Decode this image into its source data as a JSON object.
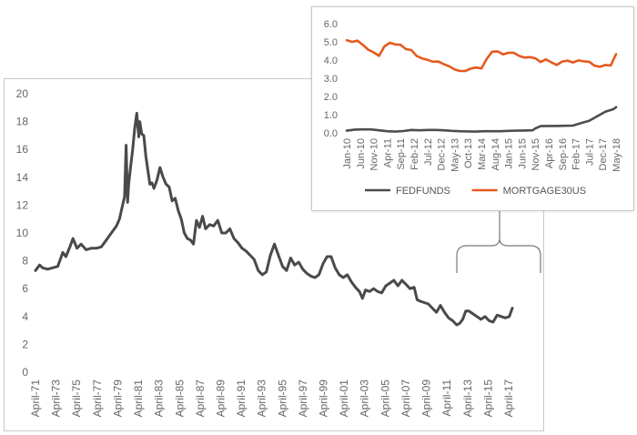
{
  "chart_data": [
    {
      "type": "line",
      "title": "",
      "xlabel": "",
      "ylabel": "",
      "ylim": [
        0,
        20
      ],
      "yticks": [
        "0",
        "2",
        "4",
        "6",
        "8",
        "10",
        "12",
        "14",
        "16",
        "18",
        "20"
      ],
      "xticks": [
        "April-71",
        "April-73",
        "April-75",
        "April-77",
        "April-79",
        "April-81",
        "April-83",
        "April-85",
        "April-87",
        "April-89",
        "April-91",
        "April-93",
        "April-95",
        "April-97",
        "April-99",
        "April-01",
        "April-03",
        "April-05",
        "April-07",
        "April-09",
        "April-11",
        "April-13",
        "April-15",
        "April-17"
      ],
      "grid": false,
      "series": [
        {
          "name": "",
          "color": "#4a4a4a",
          "x": [
            1971.3,
            1971.7,
            1972.0,
            1972.5,
            1973.0,
            1973.5,
            1974.0,
            1974.3,
            1974.7,
            1975.0,
            1975.4,
            1975.8,
            1976.3,
            1976.8,
            1977.3,
            1977.8,
            1978.3,
            1978.8,
            1979.3,
            1979.6,
            1979.9,
            1980.1,
            1980.25,
            1980.4,
            1980.5,
            1980.7,
            1980.9,
            1981.1,
            1981.3,
            1981.5,
            1981.6,
            1981.8,
            1982.0,
            1982.2,
            1982.4,
            1982.6,
            1982.8,
            1983.0,
            1983.3,
            1983.6,
            1983.9,
            1984.2,
            1984.5,
            1984.8,
            1985.1,
            1985.4,
            1985.7,
            1986.0,
            1986.3,
            1986.6,
            1986.9,
            1987.2,
            1987.5,
            1987.8,
            1988.1,
            1988.5,
            1988.9,
            1989.3,
            1989.7,
            1990.1,
            1990.5,
            1990.9,
            1991.3,
            1991.7,
            1992.1,
            1992.5,
            1992.9,
            1993.3,
            1993.7,
            1994.1,
            1994.5,
            1994.9,
            1995.3,
            1995.7,
            1996.1,
            1996.5,
            1996.9,
            1997.3,
            1997.7,
            1998.1,
            1998.5,
            1998.9,
            1999.3,
            1999.7,
            2000.1,
            2000.5,
            2000.9,
            2001.3,
            2001.7,
            2002.1,
            2002.5,
            2002.9,
            2003.3,
            2003.6,
            2003.9,
            2004.3,
            2004.7,
            2005.1,
            2005.5,
            2005.9,
            2006.3,
            2006.7,
            2007.1,
            2007.5,
            2007.9,
            2008.3,
            2008.7,
            2009.0,
            2009.3,
            2009.7,
            2010.1,
            2010.5,
            2010.9,
            2011.3,
            2011.7,
            2012.1,
            2012.5,
            2012.9,
            2013.2,
            2013.5,
            2013.8,
            2014.1,
            2014.5,
            2014.9,
            2015.3,
            2015.7,
            2016.1,
            2016.5,
            2016.9,
            2017.3,
            2017.7,
            2018.1,
            2018.4
          ],
          "y": [
            7.3,
            7.7,
            7.5,
            7.4,
            7.5,
            7.6,
            8.6,
            8.3,
            9.0,
            9.6,
            8.9,
            9.2,
            8.8,
            8.9,
            8.9,
            9.0,
            9.5,
            10.0,
            10.5,
            11.0,
            12.0,
            12.6,
            16.3,
            12.2,
            13.5,
            14.8,
            16.0,
            17.5,
            18.6,
            16.9,
            18.0,
            17.1,
            17.0,
            15.5,
            14.5,
            13.5,
            13.6,
            13.2,
            13.8,
            14.7,
            14.0,
            13.5,
            13.3,
            12.3,
            12.5,
            11.6,
            11.0,
            10.0,
            9.6,
            9.5,
            9.2,
            10.9,
            10.4,
            11.2,
            10.3,
            10.6,
            10.5,
            10.9,
            10.0,
            10.0,
            10.3,
            9.6,
            9.3,
            8.9,
            8.7,
            8.4,
            8.1,
            7.3,
            7.0,
            7.2,
            8.4,
            9.2,
            8.4,
            7.6,
            7.3,
            8.2,
            7.7,
            7.9,
            7.4,
            7.1,
            6.9,
            6.8,
            7.0,
            7.8,
            8.3,
            8.3,
            7.5,
            7.0,
            6.8,
            7.0,
            6.5,
            6.1,
            5.8,
            5.3,
            5.9,
            5.8,
            6.0,
            5.8,
            5.7,
            6.2,
            6.4,
            6.6,
            6.2,
            6.6,
            6.3,
            6.0,
            6.1,
            5.2,
            5.1,
            5.0,
            4.9,
            4.6,
            4.3,
            4.8,
            4.3,
            3.9,
            3.7,
            3.4,
            3.5,
            3.8,
            4.4,
            4.4,
            4.2,
            4.0,
            3.8,
            4.0,
            3.7,
            3.6,
            4.1,
            4.0,
            3.9,
            4.0,
            4.6
          ]
        }
      ]
    },
    {
      "type": "line",
      "title": "",
      "xlabel": "",
      "ylabel": "",
      "ylim": [
        0,
        6
      ],
      "yticks": [
        "0.0",
        "1.0",
        "2.0",
        "3.0",
        "4.0",
        "5.0",
        "6.0"
      ],
      "xticks": [
        "Jan-10",
        "Jun-10",
        "Nov-10",
        "Apr-11",
        "Sep-11",
        "Feb-12",
        "Jul-12",
        "Dec-12",
        "May-13",
        "Oct-13",
        "Mar-14",
        "Aug-14",
        "Jan-15",
        "Jun-15",
        "Nov-15",
        "Apr-16",
        "Sep-16",
        "Feb-17",
        "Jul-17",
        "Dec-17",
        "May-18"
      ],
      "grid": false,
      "legend": "bottom",
      "series": [
        {
          "name": "FEDFUNDS",
          "color": "#4d4d4d",
          "x": [
            0,
            3,
            6,
            9,
            12,
            15,
            18,
            21,
            24,
            27,
            30,
            33,
            36,
            39,
            42,
            45,
            48,
            51,
            54,
            57,
            60,
            63,
            66,
            69,
            70,
            72,
            75,
            78,
            81,
            84,
            87,
            90,
            93,
            96,
            99,
            100
          ],
          "y": [
            0.12,
            0.18,
            0.19,
            0.19,
            0.14,
            0.09,
            0.07,
            0.1,
            0.16,
            0.14,
            0.16,
            0.16,
            0.14,
            0.11,
            0.09,
            0.08,
            0.07,
            0.09,
            0.09,
            0.09,
            0.11,
            0.12,
            0.13,
            0.14,
            0.24,
            0.37,
            0.38,
            0.38,
            0.39,
            0.4,
            0.54,
            0.66,
            0.91,
            1.16,
            1.3,
            1.41
          ]
        },
        {
          "name": "MORTGAGE30US",
          "color": "#e55a1f",
          "x": [
            0,
            2,
            4,
            6,
            8,
            10,
            12,
            14,
            16,
            18,
            20,
            22,
            24,
            26,
            28,
            30,
            32,
            34,
            36,
            38,
            40,
            42,
            44,
            46,
            48,
            50,
            52,
            54,
            56,
            58,
            60,
            62,
            64,
            66,
            68,
            70,
            72,
            74,
            76,
            78,
            80,
            82,
            84,
            86,
            88,
            90,
            92,
            94,
            96,
            98,
            100
          ],
          "y": [
            5.09,
            5.0,
            5.07,
            4.83,
            4.57,
            4.42,
            4.23,
            4.75,
            4.95,
            4.86,
            4.84,
            4.6,
            4.55,
            4.22,
            4.09,
            4.01,
            3.91,
            3.92,
            3.78,
            3.66,
            3.49,
            3.4,
            3.4,
            3.53,
            3.59,
            3.54,
            4.07,
            4.46,
            4.48,
            4.31,
            4.4,
            4.4,
            4.23,
            4.14,
            4.16,
            4.1,
            3.89,
            4.04,
            3.87,
            3.73,
            3.92,
            3.97,
            3.87,
            3.98,
            3.93,
            3.91,
            3.69,
            3.63,
            3.73,
            3.7,
            4.33
          ]
        }
      ]
    }
  ]
}
